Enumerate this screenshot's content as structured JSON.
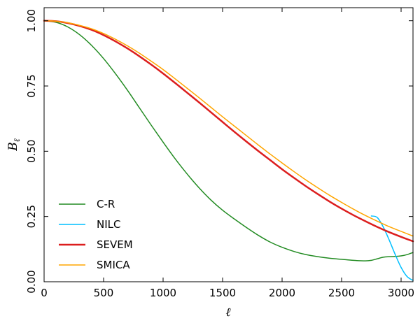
{
  "chart_data": {
    "type": "line",
    "title": "",
    "xlabel": "ℓ",
    "ylabel": "B",
    "ylabel_sub": "ℓ",
    "xlim": [
      0,
      3100
    ],
    "ylim": [
      0,
      1.05
    ],
    "xticks": [
      0,
      500,
      1000,
      1500,
      2000,
      2500,
      3000
    ],
    "yticks": [
      0.0,
      0.25,
      0.5,
      0.75,
      1.0
    ],
    "xtick_labels": [
      "0",
      "500",
      "1000",
      "1500",
      "2000",
      "2500",
      "3000"
    ],
    "ytick_labels": [
      "0.00",
      "0.25",
      "0.50",
      "0.75",
      "1.00"
    ],
    "grid": false,
    "legend_position": "lower-left",
    "series": [
      {
        "name": "C-R",
        "color": "#228b22",
        "width": 1.5,
        "x": [
          0,
          100,
          200,
          300,
          400,
          500,
          600,
          700,
          800,
          900,
          1000,
          1100,
          1200,
          1300,
          1400,
          1500,
          1600,
          1700,
          1800,
          1900,
          2000,
          2100,
          2200,
          2300,
          2400,
          2500,
          2600,
          2700,
          2750,
          2800,
          2850,
          2900,
          2950,
          3000,
          3050,
          3100
        ],
        "y": [
          1.0,
          0.994,
          0.976,
          0.946,
          0.905,
          0.855,
          0.797,
          0.734,
          0.667,
          0.6,
          0.535,
          0.472,
          0.414,
          0.361,
          0.314,
          0.274,
          0.24,
          0.208,
          0.178,
          0.152,
          0.132,
          0.116,
          0.104,
          0.096,
          0.09,
          0.086,
          0.082,
          0.08,
          0.082,
          0.088,
          0.094,
          0.096,
          0.097,
          0.099,
          0.104,
          0.112
        ]
      },
      {
        "name": "NILC",
        "color": "#00bfff",
        "width": 1.5,
        "x": [
          2750,
          2800,
          2850,
          2900,
          2950,
          3000,
          3050,
          3100
        ],
        "y": [
          0.252,
          0.246,
          0.21,
          0.16,
          0.105,
          0.055,
          0.02,
          0.005
        ]
      },
      {
        "name": "SEVEM",
        "color": "#dc1e1e",
        "width": 2.5,
        "x": [
          0,
          100,
          200,
          300,
          400,
          500,
          600,
          700,
          800,
          900,
          1000,
          1100,
          1200,
          1300,
          1400,
          1500,
          1600,
          1700,
          1800,
          1900,
          2000,
          2100,
          2200,
          2300,
          2400,
          2500,
          2600,
          2700,
          2800,
          2900,
          3000,
          3100
        ],
        "y": [
          1.0,
          0.998,
          0.991,
          0.98,
          0.965,
          0.945,
          0.921,
          0.894,
          0.864,
          0.832,
          0.798,
          0.762,
          0.725,
          0.688,
          0.65,
          0.612,
          0.574,
          0.537,
          0.501,
          0.466,
          0.431,
          0.398,
          0.366,
          0.336,
          0.307,
          0.28,
          0.255,
          0.232,
          0.21,
          0.19,
          0.172,
          0.155
        ]
      },
      {
        "name": "SMICA",
        "color": "#ffa500",
        "width": 1.5,
        "x": [
          0,
          100,
          200,
          300,
          400,
          500,
          600,
          700,
          800,
          900,
          1000,
          1100,
          1200,
          1300,
          1400,
          1500,
          1600,
          1700,
          1800,
          1900,
          2000,
          2100,
          2200,
          2300,
          2400,
          2500,
          2600,
          2700,
          2800,
          2900,
          3000,
          3100
        ],
        "y": [
          1.0,
          0.998,
          0.992,
          0.982,
          0.969,
          0.951,
          0.929,
          0.904,
          0.876,
          0.845,
          0.813,
          0.778,
          0.742,
          0.706,
          0.669,
          0.632,
          0.596,
          0.56,
          0.524,
          0.489,
          0.455,
          0.422,
          0.39,
          0.36,
          0.331,
          0.304,
          0.278,
          0.254,
          0.232,
          0.211,
          0.193,
          0.175
        ]
      }
    ]
  }
}
